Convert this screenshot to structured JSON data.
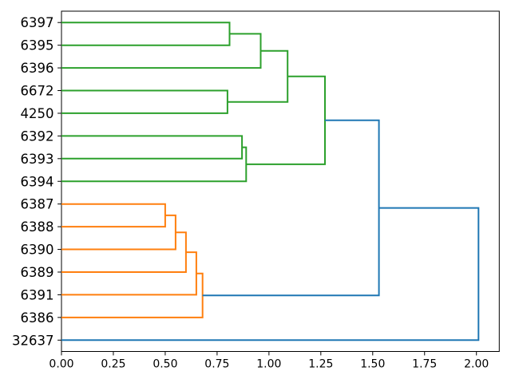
{
  "figure": {
    "background": "#ffffff",
    "spine_color": "#000000"
  },
  "chart_data": {
    "type": "dendrogram",
    "orientation": "horizontal-root-right",
    "title": "",
    "xlabel": "",
    "ylabel": "",
    "grid": false,
    "legend": false,
    "xlim": [
      0,
      2.11
    ],
    "x_ticks": [
      {
        "value": 0.0,
        "label": "0.00"
      },
      {
        "value": 0.25,
        "label": "0.25"
      },
      {
        "value": 0.5,
        "label": "0.50"
      },
      {
        "value": 0.75,
        "label": "0.75"
      },
      {
        "value": 1.0,
        "label": "1.00"
      },
      {
        "value": 1.25,
        "label": "1.25"
      },
      {
        "value": 1.5,
        "label": "1.50"
      },
      {
        "value": 1.75,
        "label": "1.75"
      },
      {
        "value": 2.0,
        "label": "2.00"
      }
    ],
    "leaves": [
      "6397",
      "6395",
      "6396",
      "6672",
      "4250",
      "6392",
      "6393",
      "6394",
      "6387",
      "6388",
      "6390",
      "6389",
      "6391",
      "6386",
      "32637"
    ],
    "link_colors": {
      "green": "#2ca02c",
      "orange": "#ff7f0e",
      "blue": "#1f77b4"
    },
    "merges": [
      {
        "id": "m1",
        "children": [
          "6397",
          "6395"
        ],
        "distance": 0.81,
        "color": "green"
      },
      {
        "id": "m2",
        "children": [
          "m1",
          "6396"
        ],
        "distance": 0.96,
        "color": "green"
      },
      {
        "id": "m3",
        "children": [
          "6672",
          "4250"
        ],
        "distance": 0.8,
        "color": "green"
      },
      {
        "id": "m4",
        "children": [
          "m2",
          "m3"
        ],
        "distance": 1.09,
        "color": "green"
      },
      {
        "id": "m5",
        "children": [
          "6392",
          "6393"
        ],
        "distance": 0.87,
        "color": "green"
      },
      {
        "id": "m6",
        "children": [
          "m5",
          "6394"
        ],
        "distance": 0.89,
        "color": "green"
      },
      {
        "id": "m7",
        "children": [
          "m4",
          "m6"
        ],
        "distance": 1.27,
        "color": "green"
      },
      {
        "id": "m8",
        "children": [
          "6387",
          "6388"
        ],
        "distance": 0.5,
        "color": "orange"
      },
      {
        "id": "m9",
        "children": [
          "m8",
          "6390"
        ],
        "distance": 0.55,
        "color": "orange"
      },
      {
        "id": "m10",
        "children": [
          "m9",
          "6389"
        ],
        "distance": 0.6,
        "color": "orange"
      },
      {
        "id": "m11",
        "children": [
          "m10",
          "6391"
        ],
        "distance": 0.65,
        "color": "orange"
      },
      {
        "id": "m12",
        "children": [
          "m11",
          "6386"
        ],
        "distance": 0.68,
        "color": "orange"
      },
      {
        "id": "m13",
        "children": [
          "m7",
          "m12"
        ],
        "distance": 1.53,
        "color": "blue"
      },
      {
        "id": "m14",
        "children": [
          "m13",
          "32637"
        ],
        "distance": 2.01,
        "color": "blue"
      }
    ]
  }
}
